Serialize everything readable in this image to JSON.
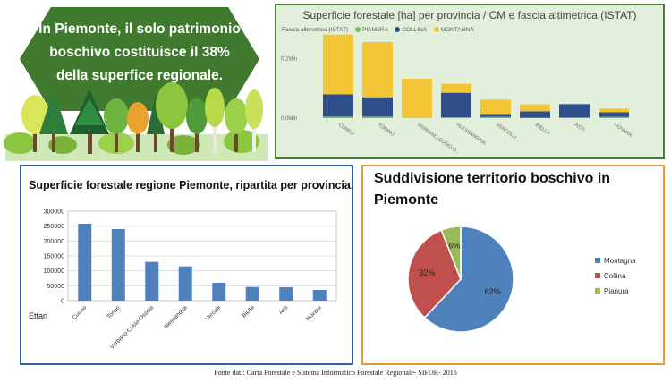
{
  "banner": {
    "line1": "In Piemonte, il solo patrimonio",
    "line2": "boschivo costituisce il 38%",
    "line3": "della superfice regionale."
  },
  "source": "Fonte dati: Carta Forestale e Sistema Informatico Forestale Regionale- SIFOR- 2016",
  "colors": {
    "banner": "#3f7a2e",
    "panel1_border": "#4a7d3c",
    "panel2_border": "#2f5fa8",
    "panel3_border": "#e19a37",
    "pianura": "#6cc05c",
    "collina": "#2e4f8c",
    "montagna": "#f2c536",
    "bar_blue": "#4f81bd",
    "pie_montagna": "#4f81bd",
    "pie_collina": "#c0504d",
    "pie_pianura": "#9bbb59"
  },
  "chart_data": [
    {
      "type": "bar",
      "stacked": true,
      "title": "Superficie forestale [ha] per provincia / CM e fascia altimetrica (ISTAT)",
      "legend_title": "Fascia altimetrica (ISTAT)",
      "legend_position": "top-left",
      "categories": [
        "CUNEO",
        "TORINO",
        "VERBANO-CUSIO-O...",
        "ALESSANDRIA",
        "VERCELLI",
        "BIELLA",
        "ASTI",
        "NOVARA"
      ],
      "series": [
        {
          "name": "PIANURA",
          "values": [
            5000,
            5000,
            0,
            3000,
            4000,
            1000,
            2000,
            4000
          ]
        },
        {
          "name": "COLLINA",
          "values": [
            75000,
            65000,
            0,
            82000,
            10000,
            22000,
            45000,
            16000
          ]
        },
        {
          "name": "MONTAGNA",
          "values": [
            200000,
            185000,
            132000,
            30000,
            48000,
            23000,
            0,
            12000
          ]
        }
      ],
      "yticks": [
        "0,0Mln",
        "0,2Mln"
      ],
      "ylim": [
        0,
        300000
      ],
      "grid": false
    },
    {
      "type": "bar",
      "title": "Superficie forestale regione Piemonte, ripartita per provincia.",
      "ylabel": "Ettari",
      "categories": [
        "Cuneo",
        "Torino",
        "Verbano-Cusio-Ossola",
        "Alessandria",
        "Vercelli",
        "Biella",
        "Asti",
        "Novara"
      ],
      "values": [
        258000,
        240000,
        130000,
        115000,
        60000,
        46000,
        45000,
        36000
      ],
      "yticks": [
        "0",
        "50000",
        "100000",
        "150000",
        "200000",
        "250000",
        "300000"
      ],
      "ylim": [
        0,
        300000
      ],
      "grid": true
    },
    {
      "type": "pie",
      "title": "Suddivisione territorio boschivo in Piemonte",
      "labels": [
        "Montagna",
        "Collina",
        "Pianura"
      ],
      "values": [
        62,
        32,
        6
      ],
      "value_labels": [
        "62%",
        "32%",
        "6%"
      ],
      "legend_position": "right"
    }
  ]
}
